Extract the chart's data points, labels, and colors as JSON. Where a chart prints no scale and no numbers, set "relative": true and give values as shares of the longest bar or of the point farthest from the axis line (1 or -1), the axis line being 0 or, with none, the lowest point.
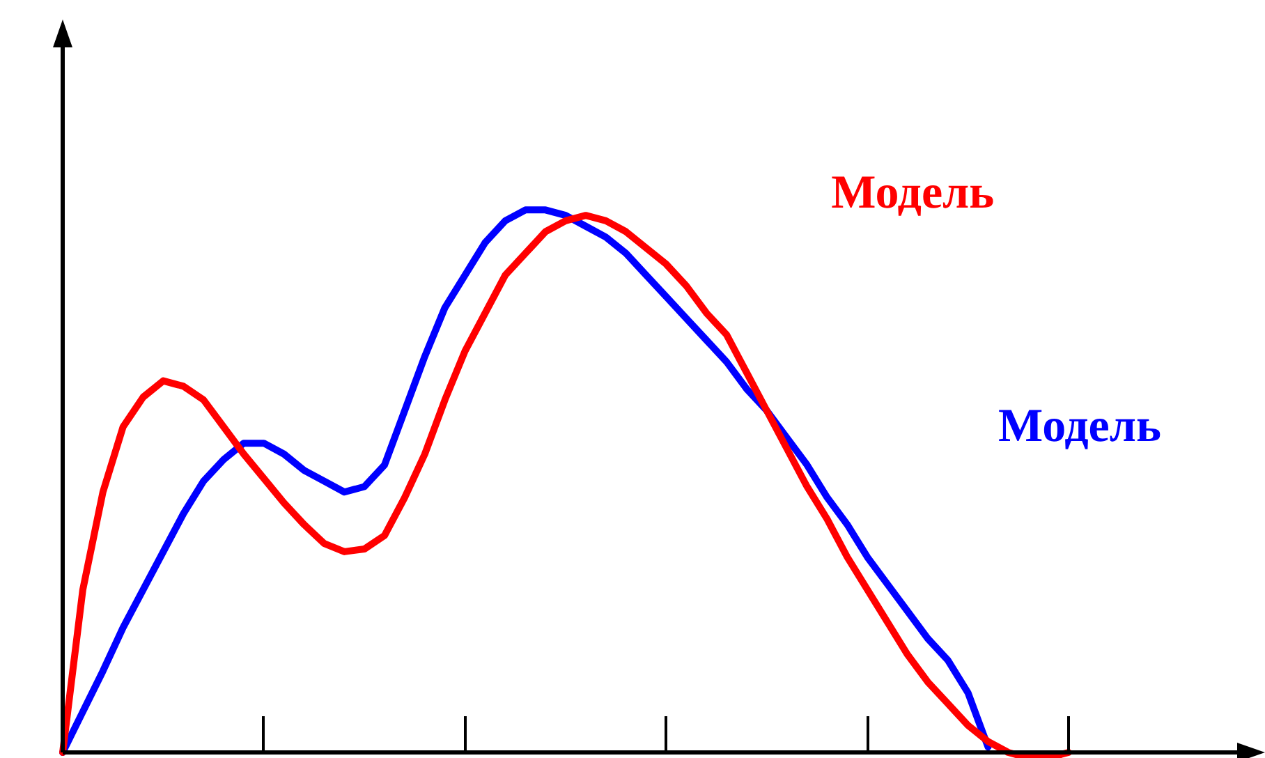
{
  "chart_data": {
    "type": "line",
    "relative": true,
    "legend": false,
    "marker": "none",
    "line_style": "solid",
    "categories": [
      null,
      null,
      null,
      null,
      null,
      null,
      null,
      null,
      null,
      null,
      null,
      null,
      null,
      null,
      null,
      null,
      null,
      null,
      null,
      null,
      null,
      null,
      null,
      null,
      null,
      null,
      null,
      null,
      null,
      null,
      null,
      null,
      null,
      null,
      null,
      null,
      null,
      null,
      null,
      null,
      null,
      null,
      null,
      null,
      null,
      null,
      null,
      null,
      null,
      null,
      null
    ],
    "series": [
      {
        "name": "Модель",
        "color": "#ff0000",
        "values": [
          0,
          0.3,
          0.48,
          0.6,
          0.655,
          0.685,
          0.675,
          0.65,
          0.6,
          0.55,
          0.505,
          0.46,
          0.42,
          0.385,
          0.37,
          0.375,
          0.4,
          0.47,
          0.55,
          0.65,
          0.74,
          0.81,
          0.88,
          0.92,
          0.96,
          0.98,
          0.99,
          0.98,
          0.96,
          0.93,
          0.9,
          0.86,
          0.81,
          0.77,
          0.7,
          0.63,
          0.56,
          0.49,
          0.43,
          0.36,
          0.3,
          0.24,
          0.18,
          0.13,
          0.09,
          0.05,
          0.02,
          0,
          -0.01,
          -0.01,
          0
        ]
      },
      {
        "name": "Модель",
        "color": "#0000ff",
        "values": [
          0,
          0.075,
          0.15,
          0.23,
          0.3,
          0.37,
          0.44,
          0.5,
          0.54,
          0.57,
          0.57,
          0.55,
          0.52,
          0.5,
          0.48,
          0.49,
          0.53,
          0.63,
          0.73,
          0.82,
          0.88,
          0.94,
          0.98,
          1,
          1,
          0.99,
          0.97,
          0.95,
          0.92,
          0.88,
          0.84,
          0.8,
          0.76,
          0.72,
          0.67,
          0.63,
          0.58,
          0.53,
          0.47,
          0.42,
          0.36,
          0.31,
          0.26,
          0.21,
          0.17,
          0.11,
          0.01,
          null,
          null,
          null,
          null
        ]
      }
    ]
  }
}
